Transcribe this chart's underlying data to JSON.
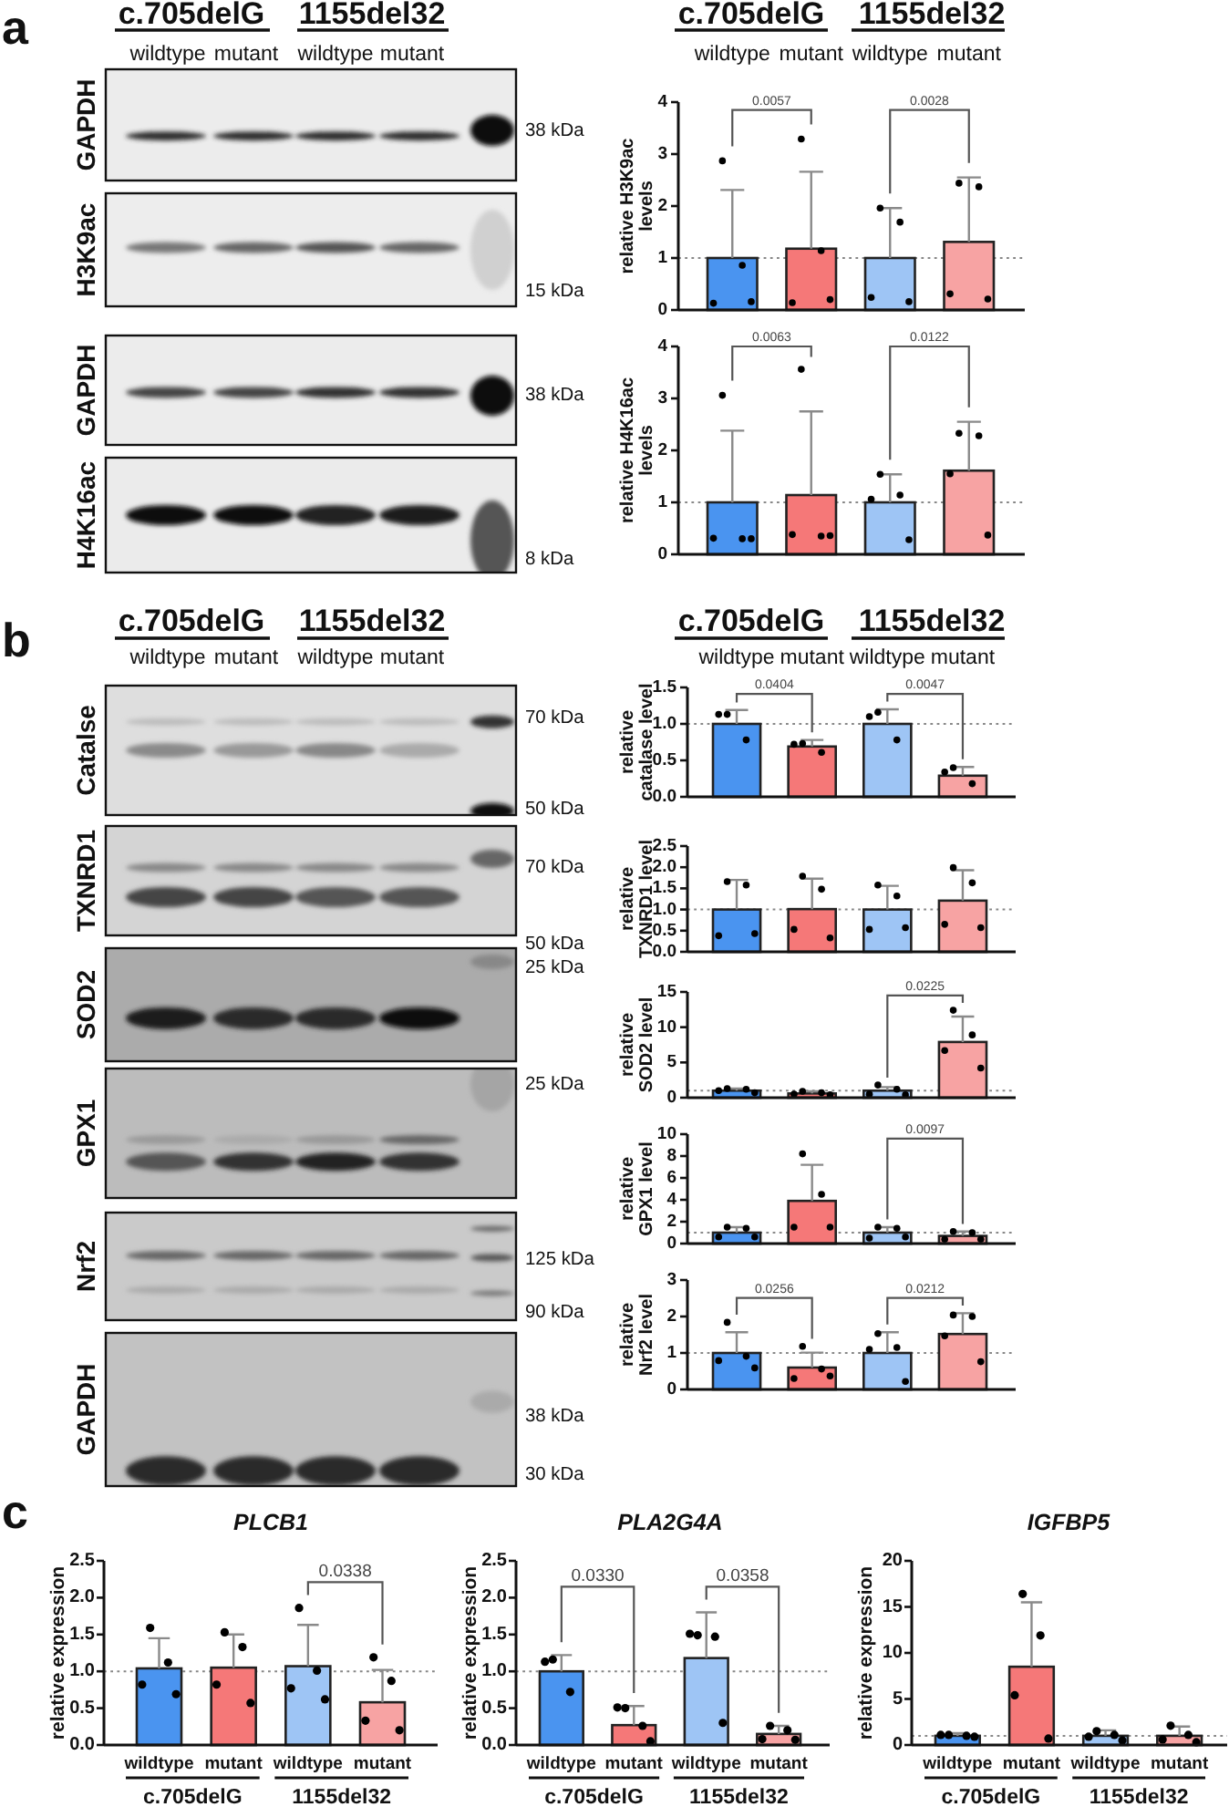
{
  "chart_data": [
    {
      "type": "other",
      "annotations": [
        "a",
        "c.705delG",
        "1155del32",
        "wildtype",
        "mutant",
        "wildtype",
        "mutant",
        "GAPDH",
        "38 kDa",
        "H3K9ac",
        "15 kDa",
        "GAPDH",
        "38 kDa",
        "H4K16ac",
        "8 kDa"
      ]
    },
    {
      "type": "bar",
      "ylabel": "relative H3K9ac\nlevels",
      "categories": [
        "wildtype",
        "mutant",
        "wildtype",
        "mutant"
      ],
      "ylim": [
        0,
        4
      ],
      "yticks": [
        0,
        1,
        2,
        3,
        4
      ],
      "marker": "circle",
      "ref_lines": [
        {
          "axis": "y",
          "value": 1,
          "line_style": "dotted",
          "color": "#888888"
        }
      ],
      "annotations": [
        "c.705delG",
        "1155del32",
        "0.0057",
        "0.0028"
      ],
      "series": [
        {
          "type": "bar",
          "values": [
            1.0,
            1.18,
            1.0,
            1.31
          ],
          "colors": [
            "#4a94f0",
            "#f57878",
            "#9ec5f5",
            "#f7a3a3"
          ],
          "errors": [
            [
              1.0,
              2.31
            ],
            [
              1.18,
              2.66
            ],
            [
              1.0,
              1.96
            ],
            [
              1.31,
              2.55
            ]
          ]
        },
        {
          "type": "scatter",
          "color": "#000000",
          "values": [
            2.87,
            3.29,
            1.96,
            2.44
          ]
        },
        {
          "type": "scatter",
          "color": "#000000",
          "values": [
            0.86,
            1.14,
            1.69,
            2.37
          ]
        },
        {
          "type": "scatter",
          "color": "#000000",
          "values": [
            0.13,
            0.14,
            0.24,
            0.31
          ]
        },
        {
          "type": "scatter",
          "color": "#000000",
          "values": [
            0.16,
            0.2,
            0.16,
            0.21
          ]
        }
      ]
    },
    {
      "type": "bar",
      "ylabel": "relative H4K16ac\nlevels",
      "categories": [
        null,
        null,
        null,
        null
      ],
      "ylim": [
        0,
        4
      ],
      "yticks": [
        0,
        1,
        2,
        3,
        4
      ],
      "marker": "circle",
      "ref_lines": [
        {
          "axis": "y",
          "value": 1,
          "line_style": "dotted",
          "color": "#888888"
        }
      ],
      "annotations": [
        "0.0063",
        "0.0122"
      ],
      "series": [
        {
          "type": "bar",
          "values": [
            1.0,
            1.14,
            1.0,
            1.61
          ],
          "colors": [
            "#4a94f0",
            "#f57878",
            "#9ec5f5",
            "#f7a3a3"
          ],
          "errors": [
            [
              1.0,
              2.38
            ],
            [
              1.14,
              2.75
            ],
            [
              1.0,
              1.54
            ],
            [
              1.61,
              2.55
            ]
          ]
        },
        {
          "type": "scatter",
          "color": "#000000",
          "values": [
            3.06,
            3.56,
            1.54,
            2.33
          ]
        },
        {
          "type": "scatter",
          "color": "#000000",
          "values": [
            0.3,
            0.35,
            1.14,
            2.28
          ]
        },
        {
          "type": "scatter",
          "color": "#000000",
          "values": [
            0.31,
            0.38,
            1.06,
            1.55
          ]
        },
        {
          "type": "scatter",
          "color": "#000000",
          "values": [
            0.3,
            0.36,
            0.28,
            0.37
          ]
        }
      ]
    },
    {
      "type": "other",
      "annotations": [
        "b",
        "c.705delG",
        "1155del32",
        "wildtype",
        "mutant",
        "wildtype",
        "mutant",
        "Catalse",
        "70 kDa",
        "50 kDa",
        "TXNRD1",
        "70 kDa",
        "50 kDa",
        "SOD2",
        "25 kDa",
        "GPX1",
        "25 kDa",
        "Nrf2",
        "125 kDa",
        "90 kDa",
        "GAPDH",
        "38 kDa",
        "30 kDa"
      ]
    },
    {
      "type": "bar",
      "ylabel": "relative\ncatalase level",
      "categories": [
        "wildtype",
        "mutant",
        "wildtype",
        "mutant"
      ],
      "ylim": [
        0,
        1.5
      ],
      "yticks": [
        {
          "value": 0,
          "label": "0.0"
        },
        0.5,
        {
          "value": 1,
          "label": "1.0"
        },
        1.5
      ],
      "marker": "circle",
      "ref_lines": [
        {
          "axis": "y",
          "value": 1,
          "line_style": "dotted",
          "color": "#888888"
        }
      ],
      "annotations": [
        "c.705delG",
        "1155del32",
        "0.0404",
        "0.0047"
      ],
      "series": [
        {
          "type": "bar",
          "values": [
            1.0,
            0.69,
            1.0,
            0.29
          ],
          "colors": [
            "#4a94f0",
            "#f57878",
            "#9ec5f5",
            "#f7a3a3"
          ],
          "errors": [
            [
              1.0,
              1.19
            ],
            [
              0.69,
              0.78
            ],
            [
              1.0,
              1.2
            ],
            [
              0.29,
              0.41
            ]
          ]
        },
        {
          "type": "scatter",
          "color": "#000000",
          "values": [
            1.13,
            0.73,
            1.16,
            0.4
          ]
        },
        {
          "type": "scatter",
          "color": "#000000",
          "values": [
            0.78,
            0.61,
            0.78,
            0.18
          ]
        },
        {
          "type": "scatter",
          "color": "#000000",
          "values": [
            1.13,
            0.72,
            1.1,
            0.34
          ]
        }
      ]
    },
    {
      "type": "bar",
      "ylabel": "relative\nTXNRD1 level",
      "categories": [
        null,
        null,
        null,
        null
      ],
      "ylim": [
        0,
        2.5
      ],
      "yticks": [
        {
          "value": 0,
          "label": "0.0"
        },
        0.5,
        {
          "value": 1,
          "label": "1.0"
        },
        1.5,
        {
          "value": 2,
          "label": "2.0"
        },
        2.5
      ],
      "marker": "circle",
      "ref_lines": [
        {
          "axis": "y",
          "value": 1,
          "line_style": "dotted",
          "color": "#888888"
        }
      ],
      "series": [
        {
          "type": "bar",
          "values": [
            1.0,
            1.01,
            1.0,
            1.21
          ],
          "colors": [
            "#4a94f0",
            "#f57878",
            "#9ec5f5",
            "#f7a3a3"
          ],
          "errors": [
            [
              1.0,
              1.7
            ],
            [
              1.01,
              1.73
            ],
            [
              1.0,
              1.56
            ],
            [
              1.21,
              1.93
            ]
          ]
        },
        {
          "type": "scatter",
          "color": "#000000",
          "values": [
            1.66,
            1.79,
            1.58,
            1.99
          ]
        },
        {
          "type": "scatter",
          "color": "#000000",
          "values": [
            1.58,
            1.48,
            1.32,
            1.63
          ]
        },
        {
          "type": "scatter",
          "color": "#000000",
          "values": [
            0.38,
            0.53,
            0.53,
            0.65
          ]
        },
        {
          "type": "scatter",
          "color": "#000000",
          "values": [
            0.43,
            0.33,
            0.57,
            0.57
          ]
        }
      ]
    },
    {
      "type": "bar",
      "ylabel": "relative\nSOD2 level",
      "categories": [
        null,
        null,
        null,
        null
      ],
      "ylim": [
        0,
        15
      ],
      "yticks": [
        0,
        5,
        10,
        15
      ],
      "marker": "circle",
      "ref_lines": [
        {
          "axis": "y",
          "value": 1,
          "line_style": "dotted",
          "color": "#888888"
        }
      ],
      "annotations": [
        "0.0225"
      ],
      "series": [
        {
          "type": "bar",
          "values": [
            1.0,
            0.6,
            1.0,
            7.9
          ],
          "colors": [
            "#4a94f0",
            "#f57878",
            "#9ec5f5",
            "#f7a3a3"
          ],
          "errors": [
            [
              1.0,
              1.3
            ],
            [
              0.6,
              0.9
            ],
            [
              1.0,
              1.5
            ],
            [
              7.9,
              11.5
            ]
          ]
        },
        {
          "type": "scatter",
          "color": "#000000",
          "values": [
            1.3,
            0.9,
            1.8,
            12.4
          ]
        },
        {
          "type": "scatter",
          "color": "#000000",
          "values": [
            1.2,
            0.7,
            1.2,
            8.9
          ]
        },
        {
          "type": "scatter",
          "color": "#000000",
          "values": [
            1.0,
            0.5,
            0.5,
            6.7
          ]
        },
        {
          "type": "scatter",
          "color": "#000000",
          "values": [
            0.7,
            0.4,
            0.4,
            4.2
          ]
        }
      ]
    },
    {
      "type": "bar",
      "ylabel": "relative\nGPX1 level",
      "categories": [
        null,
        null,
        null,
        null
      ],
      "ylim": [
        0,
        10
      ],
      "yticks": [
        0,
        2,
        4,
        6,
        8,
        10
      ],
      "marker": "circle",
      "ref_lines": [
        {
          "axis": "y",
          "value": 1,
          "line_style": "dotted",
          "color": "#888888"
        }
      ],
      "annotations": [
        "0.0097"
      ],
      "series": [
        {
          "type": "bar",
          "values": [
            1.0,
            3.9,
            1.0,
            0.7
          ],
          "colors": [
            "#4a94f0",
            "#f57878",
            "#9ec5f5",
            "#f7a3a3"
          ],
          "errors": [
            [
              1.0,
              1.5
            ],
            [
              3.9,
              7.2
            ],
            [
              1.0,
              1.5
            ],
            [
              0.7,
              1.1
            ]
          ]
        },
        {
          "type": "scatter",
          "color": "#000000",
          "values": [
            1.5,
            8.2,
            1.5,
            1.1
          ]
        },
        {
          "type": "scatter",
          "color": "#000000",
          "values": [
            1.4,
            4.5,
            1.4,
            1.0
          ]
        },
        {
          "type": "scatter",
          "color": "#000000",
          "values": [
            0.6,
            1.5,
            0.5,
            0.4
          ]
        },
        {
          "type": "scatter",
          "color": "#000000",
          "values": [
            0.6,
            1.5,
            0.6,
            0.4
          ]
        }
      ]
    },
    {
      "type": "bar",
      "ylabel": "relative\nNrf2 level",
      "categories": [
        null,
        null,
        null,
        null
      ],
      "ylim": [
        0,
        3
      ],
      "yticks": [
        0,
        1,
        2,
        3
      ],
      "marker": "circle",
      "ref_lines": [
        {
          "axis": "y",
          "value": 1,
          "line_style": "dotted",
          "color": "#888888"
        }
      ],
      "annotations": [
        "0.0256",
        "0.0212"
      ],
      "series": [
        {
          "type": "bar",
          "values": [
            1.0,
            0.6,
            1.0,
            1.52
          ],
          "colors": [
            "#4a94f0",
            "#f57878",
            "#9ec5f5",
            "#f7a3a3"
          ],
          "errors": [
            [
              1.0,
              1.57
            ],
            [
              0.6,
              1.01
            ],
            [
              1.0,
              1.57
            ],
            [
              1.52,
              2.09
            ]
          ]
        },
        {
          "type": "scatter",
          "color": "#000000",
          "values": [
            1.84,
            1.18,
            1.53,
            2.04
          ]
        },
        {
          "type": "scatter",
          "color": "#000000",
          "values": [
            0.91,
            0.56,
            1.15,
            2.0
          ]
        },
        {
          "type": "scatter",
          "color": "#000000",
          "values": [
            0.79,
            0.3,
            1.1,
            1.47
          ]
        },
        {
          "type": "scatter",
          "color": "#000000",
          "values": [
            0.59,
            0.37,
            0.22,
            0.76
          ]
        }
      ]
    },
    {
      "type": "bar",
      "title": "PLCB1",
      "ylabel": "relative expression",
      "categories": [
        "wildtype",
        "mutant",
        "wildtype",
        "mutant"
      ],
      "ylim": [
        0,
        2.5
      ],
      "yticks": [
        {
          "value": 0,
          "label": "0.0"
        },
        0.5,
        {
          "value": 1,
          "label": "1.0"
        },
        1.5,
        {
          "value": 2,
          "label": "2.0"
        },
        2.5
      ],
      "marker": "circle",
      "ref_lines": [
        {
          "axis": "y",
          "value": 1,
          "line_style": "dotted",
          "color": "#888888"
        }
      ],
      "annotations": [
        "c",
        "c.705delG",
        "1155del32",
        "0.0338"
      ],
      "series": [
        {
          "type": "bar",
          "values": [
            1.04,
            1.05,
            1.07,
            0.58
          ],
          "colors": [
            "#4a94f0",
            "#f57878",
            "#9ec5f5",
            "#f7a3a3"
          ],
          "errors": [
            [
              1.04,
              1.45
            ],
            [
              1.05,
              1.5
            ],
            [
              1.07,
              1.63
            ],
            [
              0.58,
              1.02
            ]
          ]
        },
        {
          "type": "scatter",
          "color": "#000000",
          "values": [
            1.59,
            1.53,
            1.86,
            1.19
          ]
        },
        {
          "type": "scatter",
          "color": "#000000",
          "values": [
            1.12,
            1.33,
            1.01,
            0.87
          ]
        },
        {
          "type": "scatter",
          "color": "#000000",
          "values": [
            0.82,
            0.82,
            0.77,
            0.33
          ]
        },
        {
          "type": "scatter",
          "color": "#000000",
          "values": [
            0.69,
            0.57,
            0.62,
            0.2
          ]
        }
      ]
    },
    {
      "type": "bar",
      "title": "PLA2G4A",
      "ylabel": "relative expression",
      "categories": [
        "wildtype",
        "mutant",
        "wildtype",
        "mutant"
      ],
      "ylim": [
        0,
        2.5
      ],
      "yticks": [
        {
          "value": 0,
          "label": "0.0"
        },
        0.5,
        {
          "value": 1,
          "label": "1.0"
        },
        1.5,
        {
          "value": 2,
          "label": "2.0"
        },
        2.5
      ],
      "marker": "circle",
      "ref_lines": [
        {
          "axis": "y",
          "value": 1,
          "line_style": "dotted",
          "color": "#888888"
        }
      ],
      "annotations": [
        "c.705delG",
        "1155del32",
        "0.0330",
        "0.0358"
      ],
      "series": [
        {
          "type": "bar",
          "values": [
            1.0,
            0.27,
            1.18,
            0.15
          ],
          "colors": [
            "#4a94f0",
            "#f57878",
            "#9ec5f5",
            "#f7a3a3"
          ],
          "errors": [
            [
              1.0,
              1.22
            ],
            [
              0.27,
              0.53
            ],
            [
              1.18,
              1.8
            ],
            [
              0.15,
              0.26
            ]
          ]
        },
        {
          "type": "scatter",
          "color": "#000000",
          "values": [
            1.16,
            0.5,
            1.49,
            0.26
          ]
        },
        {
          "type": "scatter",
          "color": "#000000",
          "values": [
            0.72,
            0.26,
            1.47,
            0.2
          ]
        },
        {
          "type": "scatter",
          "color": "#000000",
          "values": [
            1.13,
            0.51,
            1.51,
            0.08
          ]
        },
        {
          "type": "scatter",
          "color": "#000000",
          "values": [
            null,
            0.05,
            0.3,
            0.07
          ]
        }
      ]
    },
    {
      "type": "bar",
      "title": "IGFBP5",
      "ylabel": "relative expression",
      "categories": [
        "wildtype",
        "mutant",
        "wildtype",
        "mutant"
      ],
      "ylim": [
        0,
        20
      ],
      "yticks": [
        0,
        5,
        10,
        15,
        20
      ],
      "marker": "circle",
      "ref_lines": [
        {
          "axis": "y",
          "value": 1,
          "line_style": "dotted",
          "color": "#888888"
        }
      ],
      "annotations": [
        "c.705delG",
        "1155del32"
      ],
      "series": [
        {
          "type": "bar",
          "values": [
            1.0,
            8.5,
            1.0,
            1.0
          ],
          "colors": [
            "#4a94f0",
            "#f57878",
            "#9ec5f5",
            "#f7a3a3"
          ],
          "errors": [
            [
              1.0,
              1.3
            ],
            [
              8.5,
              15.5
            ],
            [
              1.0,
              1.6
            ],
            [
              1.0,
              2.0
            ]
          ]
        },
        {
          "type": "scatter",
          "color": "#000000",
          "values": [
            1.1,
            16.4,
            1.5,
            2.1
          ]
        },
        {
          "type": "scatter",
          "color": "#000000",
          "values": [
            1.0,
            11.9,
            1.1,
            1.1
          ]
        },
        {
          "type": "scatter",
          "color": "#000000",
          "values": [
            1.1,
            5.4,
            0.9,
            0.6
          ]
        },
        {
          "type": "scatter",
          "color": "#000000",
          "values": [
            0.9,
            0.7,
            0.5,
            0.3
          ]
        }
      ]
    }
  ]
}
